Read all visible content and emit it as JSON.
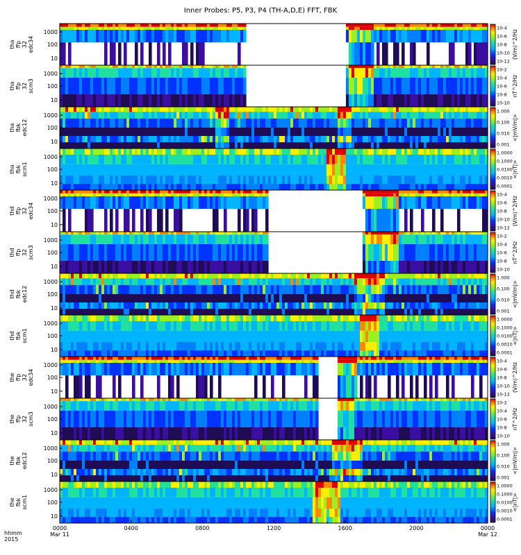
{
  "chart_data": {
    "type": "heatmap",
    "title": "Inner Probes: P5, P3, P4 (TH-A,D,E) FFT, FBK",
    "x_axis": {
      "row_label": "hhmm",
      "year_label": "2015",
      "range": [
        "0000 Mar 11",
        "0000 Mar 12"
      ],
      "ticks": [
        {
          "label": "0000",
          "sublabel": "Mar 11",
          "hour": 0
        },
        {
          "label": "0400",
          "sublabel": "",
          "hour": 4
        },
        {
          "label": "0800",
          "sublabel": "",
          "hour": 8
        },
        {
          "label": "1200",
          "sublabel": "",
          "hour": 12
        },
        {
          "label": "1600",
          "sublabel": "",
          "hour": 16
        },
        {
          "label": "2000",
          "sublabel": "",
          "hour": 20
        },
        {
          "label": "0000",
          "sublabel": "Mar 12",
          "hour": 24
        }
      ]
    },
    "y_ticks": [
      "1000",
      "100",
      "10"
    ],
    "colorbars": [
      {
        "kind": "ffe",
        "unit": "(V/m)^2/Hz",
        "ticks": [
          "10-4",
          "10-6",
          "10-8",
          "10-10",
          "10-12"
        ]
      },
      {
        "kind": "ffb",
        "unit": "nT^2/Hz",
        "ticks": [
          "10-2",
          "10-4",
          "10-6",
          "10-8",
          "10-10"
        ]
      },
      {
        "kind": "fbe",
        "unit": "<|mV/m|>",
        "ticks": [
          "1.000",
          "0.100",
          "0.010",
          "0.001"
        ]
      },
      {
        "kind": "fbb",
        "unit": "<|nT|>",
        "ticks": [
          "1.0000",
          "0.1000",
          "0.0100",
          "0.0010",
          "0.0001"
        ]
      }
    ],
    "panels": [
      {
        "lines": [
          "tha",
          "ffp",
          "32",
          "edc34"
        ],
        "colorbar": 0,
        "gaps": [
          [
            10.45,
            16.1
          ]
        ],
        "bursts": [
          [
            16.2,
            17.6
          ]
        ]
      },
      {
        "lines": [
          "tha",
          "ffp",
          "32",
          "scm3"
        ],
        "colorbar": 1,
        "gaps": [
          [
            10.45,
            16.1
          ]
        ],
        "bursts": [
          [
            16.2,
            17.6
          ]
        ]
      },
      {
        "lines": [
          "tha",
          "fbk",
          "edc12"
        ],
        "colorbar": 2,
        "gaps": [],
        "bursts": [
          [
            8.8,
            9.5
          ],
          [
            15.6,
            16.4
          ]
        ]
      },
      {
        "lines": [
          "tha",
          "fbk",
          "scm1"
        ],
        "colorbar": 3,
        "gaps": [],
        "bursts": [
          [
            14.9,
            16.0
          ]
        ]
      },
      {
        "lines": [
          "thd",
          "ffp",
          "32",
          "edc34"
        ],
        "colorbar": 0,
        "gaps": [
          [
            11.7,
            17.05
          ]
        ],
        "bursts": [
          [
            17.1,
            19.0
          ]
        ]
      },
      {
        "lines": [
          "thd",
          "ffp",
          "32",
          "scm3"
        ],
        "colorbar": 1,
        "gaps": [
          [
            11.7,
            17.05
          ]
        ],
        "bursts": [
          [
            17.1,
            19.0
          ]
        ]
      },
      {
        "lines": [
          "thd",
          "fbk",
          "edc12"
        ],
        "colorbar": 2,
        "gaps": [],
        "bursts": [
          [
            16.5,
            18.3
          ]
        ]
      },
      {
        "lines": [
          "thd",
          "fbk",
          "scm1"
        ],
        "colorbar": 3,
        "gaps": [],
        "bursts": [
          [
            16.9,
            18.0
          ]
        ]
      },
      {
        "lines": [
          "the",
          "ffp",
          "32",
          "edc34"
        ],
        "colorbar": 0,
        "gaps": [
          [
            14.5,
            15.55
          ]
        ],
        "bursts": [
          [
            15.6,
            16.6
          ]
        ]
      },
      {
        "lines": [
          "the",
          "ffp",
          "32",
          "scm3"
        ],
        "colorbar": 1,
        "gaps": [
          [
            14.5,
            15.55
          ]
        ],
        "bursts": [
          [
            15.6,
            16.5
          ]
        ]
      },
      {
        "lines": [
          "the",
          "fbk",
          "edc12"
        ],
        "colorbar": 2,
        "gaps": [],
        "bursts": [
          [
            15.2,
            17.0
          ]
        ]
      },
      {
        "lines": [
          "the",
          "fbk",
          "scm1"
        ],
        "colorbar": 3,
        "gaps": [],
        "bursts": [
          [
            14.2,
            15.7
          ]
        ]
      }
    ]
  }
}
